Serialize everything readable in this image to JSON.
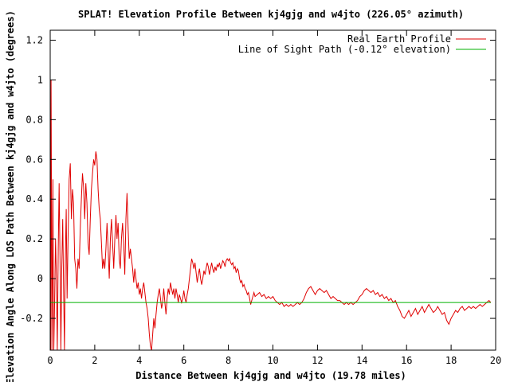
{
  "chart_data": {
    "type": "line",
    "title": "SPLAT! Elevation Profile Between kj4gjg and w4jto (226.05° azimuth)",
    "xlabel": "Distance Between kj4gjg and w4jto (19.78 miles)",
    "ylabel": "Elevation Angle Along LOS Path Between kj4gjg and w4jto (degrees)",
    "xlim": [
      0,
      20
    ],
    "ylim": [
      -0.36,
      1.25
    ],
    "x_ticks": [
      0,
      2,
      4,
      6,
      8,
      10,
      12,
      14,
      16,
      18,
      20
    ],
    "x_tick_labels": [
      "0",
      "2",
      "4",
      "6",
      "8",
      "10",
      "12",
      "14",
      "16",
      "18",
      "20"
    ],
    "y_ticks": [
      -0.2,
      0,
      0.2,
      0.4,
      0.6,
      0.8,
      1,
      1.2
    ],
    "y_tick_labels": [
      "-0.2",
      "0",
      "0.2",
      "0.4",
      "0.6",
      "0.8",
      "1",
      "1.2"
    ],
    "grid": false,
    "legend_position": "top-right",
    "series": [
      {
        "name": "Real Earth Profile",
        "color": "#e00000",
        "points": [
          [
            0.02,
            -0.36
          ],
          [
            0.04,
            1.0
          ],
          [
            0.06,
            0.3
          ],
          [
            0.08,
            -0.36
          ],
          [
            0.1,
            -0.02
          ],
          [
            0.12,
            0.5
          ],
          [
            0.14,
            -0.03
          ],
          [
            0.16,
            -0.36
          ],
          [
            0.2,
            -0.1
          ],
          [
            0.24,
            0.2
          ],
          [
            0.28,
            0.0
          ],
          [
            0.32,
            -0.36
          ],
          [
            0.36,
            0.15
          ],
          [
            0.4,
            0.48
          ],
          [
            0.44,
            0.1
          ],
          [
            0.48,
            -0.36
          ],
          [
            0.52,
            0.05
          ],
          [
            0.56,
            0.3
          ],
          [
            0.6,
            -0.05
          ],
          [
            0.64,
            -0.36
          ],
          [
            0.68,
            0.1
          ],
          [
            0.72,
            0.35
          ],
          [
            0.76,
            -0.1
          ],
          [
            0.8,
            0.2
          ],
          [
            0.85,
            0.5
          ],
          [
            0.9,
            0.58
          ],
          [
            0.95,
            0.3
          ],
          [
            1.0,
            0.45
          ],
          [
            1.05,
            0.38
          ],
          [
            1.1,
            0.1
          ],
          [
            1.15,
            0.05
          ],
          [
            1.2,
            -0.05
          ],
          [
            1.25,
            0.1
          ],
          [
            1.3,
            0.05
          ],
          [
            1.35,
            0.25
          ],
          [
            1.4,
            0.4
          ],
          [
            1.45,
            0.53
          ],
          [
            1.5,
            0.46
          ],
          [
            1.55,
            0.3
          ],
          [
            1.6,
            0.48
          ],
          [
            1.65,
            0.38
          ],
          [
            1.7,
            0.18
          ],
          [
            1.75,
            0.12
          ],
          [
            1.8,
            0.3
          ],
          [
            1.85,
            0.45
          ],
          [
            1.9,
            0.53
          ],
          [
            1.95,
            0.6
          ],
          [
            2.0,
            0.57
          ],
          [
            2.05,
            0.64
          ],
          [
            2.1,
            0.6
          ],
          [
            2.15,
            0.45
          ],
          [
            2.2,
            0.35
          ],
          [
            2.25,
            0.3
          ],
          [
            2.3,
            0.18
          ],
          [
            2.35,
            0.05
          ],
          [
            2.4,
            0.1
          ],
          [
            2.45,
            0.05
          ],
          [
            2.5,
            0.15
          ],
          [
            2.55,
            0.28
          ],
          [
            2.6,
            0.15
          ],
          [
            2.65,
            0.0
          ],
          [
            2.7,
            0.2
          ],
          [
            2.75,
            0.3
          ],
          [
            2.8,
            0.18
          ],
          [
            2.85,
            0.05
          ],
          [
            2.9,
            0.2
          ],
          [
            2.95,
            0.32
          ],
          [
            3.0,
            0.2
          ],
          [
            3.05,
            0.28
          ],
          [
            3.1,
            0.1
          ],
          [
            3.15,
            0.05
          ],
          [
            3.2,
            0.2
          ],
          [
            3.25,
            0.28
          ],
          [
            3.3,
            0.18
          ],
          [
            3.35,
            0.02
          ],
          [
            3.4,
            0.3
          ],
          [
            3.45,
            0.43
          ],
          [
            3.5,
            0.25
          ],
          [
            3.55,
            0.1
          ],
          [
            3.6,
            0.15
          ],
          [
            3.65,
            0.1
          ],
          [
            3.7,
            0.05
          ],
          [
            3.75,
            -0.02
          ],
          [
            3.8,
            0.05
          ],
          [
            3.85,
            0.0
          ],
          [
            3.9,
            -0.05
          ],
          [
            3.95,
            -0.02
          ],
          [
            4.0,
            -0.08
          ],
          [
            4.05,
            -0.05
          ],
          [
            4.1,
            -0.1
          ],
          [
            4.15,
            -0.05
          ],
          [
            4.2,
            -0.02
          ],
          [
            4.25,
            -0.07
          ],
          [
            4.3,
            -0.12
          ],
          [
            4.35,
            -0.15
          ],
          [
            4.4,
            -0.2
          ],
          [
            4.45,
            -0.28
          ],
          [
            4.5,
            -0.34
          ],
          [
            4.55,
            -0.36
          ],
          [
            4.6,
            -0.28
          ],
          [
            4.65,
            -0.2
          ],
          [
            4.7,
            -0.25
          ],
          [
            4.75,
            -0.18
          ],
          [
            4.8,
            -0.12
          ],
          [
            4.85,
            -0.08
          ],
          [
            4.9,
            -0.05
          ],
          [
            4.95,
            -0.1
          ],
          [
            5.0,
            -0.15
          ],
          [
            5.05,
            -0.12
          ],
          [
            5.1,
            -0.05
          ],
          [
            5.15,
            -0.12
          ],
          [
            5.2,
            -0.18
          ],
          [
            5.25,
            -0.1
          ],
          [
            5.3,
            -0.05
          ],
          [
            5.35,
            -0.08
          ],
          [
            5.4,
            -0.02
          ],
          [
            5.45,
            -0.05
          ],
          [
            5.5,
            -0.08
          ],
          [
            5.55,
            -0.05
          ],
          [
            5.6,
            -0.1
          ],
          [
            5.65,
            -0.05
          ],
          [
            5.7,
            -0.08
          ],
          [
            5.75,
            -0.12
          ],
          [
            5.8,
            -0.08
          ],
          [
            5.85,
            -0.1
          ],
          [
            5.9,
            -0.12
          ],
          [
            5.95,
            -0.1
          ],
          [
            6.0,
            -0.06
          ],
          [
            6.05,
            -0.1
          ],
          [
            6.1,
            -0.12
          ],
          [
            6.15,
            -0.08
          ],
          [
            6.2,
            -0.05
          ],
          [
            6.25,
            0.0
          ],
          [
            6.3,
            0.05
          ],
          [
            6.35,
            0.1
          ],
          [
            6.4,
            0.08
          ],
          [
            6.45,
            0.05
          ],
          [
            6.5,
            0.08
          ],
          [
            6.55,
            0.03
          ],
          [
            6.6,
            -0.02
          ],
          [
            6.65,
            0.02
          ],
          [
            6.7,
            0.05
          ],
          [
            6.75,
            0.0
          ],
          [
            6.8,
            -0.03
          ],
          [
            6.85,
            0.0
          ],
          [
            6.9,
            0.04
          ],
          [
            6.95,
            0.02
          ],
          [
            7.0,
            0.05
          ],
          [
            7.05,
            0.08
          ],
          [
            7.1,
            0.06
          ],
          [
            7.15,
            0.02
          ],
          [
            7.2,
            0.05
          ],
          [
            7.25,
            0.08
          ],
          [
            7.3,
            0.05
          ],
          [
            7.35,
            0.03
          ],
          [
            7.4,
            0.06
          ],
          [
            7.45,
            0.04
          ],
          [
            7.5,
            0.07
          ],
          [
            7.55,
            0.06
          ],
          [
            7.6,
            0.08
          ],
          [
            7.65,
            0.05
          ],
          [
            7.7,
            0.07
          ],
          [
            7.75,
            0.09
          ],
          [
            7.8,
            0.08
          ],
          [
            7.85,
            0.06
          ],
          [
            7.9,
            0.09
          ],
          [
            7.95,
            0.1
          ],
          [
            8.0,
            0.09
          ],
          [
            8.05,
            0.1
          ],
          [
            8.1,
            0.08
          ],
          [
            8.15,
            0.07
          ],
          [
            8.2,
            0.08
          ],
          [
            8.25,
            0.05
          ],
          [
            8.3,
            0.06
          ],
          [
            8.35,
            0.03
          ],
          [
            8.4,
            0.05
          ],
          [
            8.45,
            0.04
          ],
          [
            8.5,
            0.0
          ],
          [
            8.55,
            -0.02
          ],
          [
            8.6,
            -0.01
          ],
          [
            8.65,
            -0.04
          ],
          [
            8.7,
            -0.03
          ],
          [
            8.75,
            -0.05
          ],
          [
            8.8,
            -0.06
          ],
          [
            8.85,
            -0.08
          ],
          [
            8.9,
            -0.07
          ],
          [
            8.95,
            -0.1
          ],
          [
            9.0,
            -0.13
          ],
          [
            9.05,
            -0.11
          ],
          [
            9.1,
            -0.09
          ],
          [
            9.15,
            -0.07
          ],
          [
            9.2,
            -0.09
          ],
          [
            9.3,
            -0.08
          ],
          [
            9.4,
            -0.07
          ],
          [
            9.5,
            -0.09
          ],
          [
            9.6,
            -0.08
          ],
          [
            9.7,
            -0.1
          ],
          [
            9.8,
            -0.09
          ],
          [
            9.9,
            -0.1
          ],
          [
            10.0,
            -0.09
          ],
          [
            10.1,
            -0.11
          ],
          [
            10.2,
            -0.12
          ],
          [
            10.3,
            -0.13
          ],
          [
            10.4,
            -0.12
          ],
          [
            10.5,
            -0.14
          ],
          [
            10.6,
            -0.13
          ],
          [
            10.7,
            -0.14
          ],
          [
            10.8,
            -0.13
          ],
          [
            10.9,
            -0.14
          ],
          [
            11.0,
            -0.13
          ],
          [
            11.1,
            -0.12
          ],
          [
            11.2,
            -0.13
          ],
          [
            11.3,
            -0.12
          ],
          [
            11.4,
            -0.1
          ],
          [
            11.5,
            -0.07
          ],
          [
            11.6,
            -0.05
          ],
          [
            11.7,
            -0.04
          ],
          [
            11.8,
            -0.06
          ],
          [
            11.9,
            -0.08
          ],
          [
            12.0,
            -0.06
          ],
          [
            12.1,
            -0.05
          ],
          [
            12.2,
            -0.06
          ],
          [
            12.3,
            -0.07
          ],
          [
            12.4,
            -0.06
          ],
          [
            12.5,
            -0.08
          ],
          [
            12.6,
            -0.1
          ],
          [
            12.7,
            -0.09
          ],
          [
            12.8,
            -0.1
          ],
          [
            12.9,
            -0.11
          ],
          [
            13.0,
            -0.11
          ],
          [
            13.1,
            -0.12
          ],
          [
            13.2,
            -0.13
          ],
          [
            13.3,
            -0.12
          ],
          [
            13.4,
            -0.13
          ],
          [
            13.5,
            -0.12
          ],
          [
            13.6,
            -0.13
          ],
          [
            13.7,
            -0.12
          ],
          [
            13.8,
            -0.11
          ],
          [
            13.9,
            -0.09
          ],
          [
            14.0,
            -0.08
          ],
          [
            14.1,
            -0.06
          ],
          [
            14.2,
            -0.05
          ],
          [
            14.3,
            -0.06
          ],
          [
            14.4,
            -0.07
          ],
          [
            14.5,
            -0.06
          ],
          [
            14.6,
            -0.08
          ],
          [
            14.7,
            -0.07
          ],
          [
            14.8,
            -0.09
          ],
          [
            14.9,
            -0.08
          ],
          [
            15.0,
            -0.1
          ],
          [
            15.1,
            -0.09
          ],
          [
            15.2,
            -0.11
          ],
          [
            15.3,
            -0.1
          ],
          [
            15.4,
            -0.12
          ],
          [
            15.5,
            -0.11
          ],
          [
            15.6,
            -0.14
          ],
          [
            15.7,
            -0.16
          ],
          [
            15.8,
            -0.19
          ],
          [
            15.9,
            -0.2
          ],
          [
            16.0,
            -0.18
          ],
          [
            16.1,
            -0.16
          ],
          [
            16.2,
            -0.19
          ],
          [
            16.3,
            -0.17
          ],
          [
            16.4,
            -0.15
          ],
          [
            16.5,
            -0.18
          ],
          [
            16.6,
            -0.16
          ],
          [
            16.7,
            -0.14
          ],
          [
            16.8,
            -0.17
          ],
          [
            16.9,
            -0.15
          ],
          [
            17.0,
            -0.13
          ],
          [
            17.1,
            -0.15
          ],
          [
            17.2,
            -0.17
          ],
          [
            17.3,
            -0.16
          ],
          [
            17.4,
            -0.14
          ],
          [
            17.5,
            -0.16
          ],
          [
            17.6,
            -0.18
          ],
          [
            17.7,
            -0.17
          ],
          [
            17.8,
            -0.21
          ],
          [
            17.9,
            -0.23
          ],
          [
            18.0,
            -0.2
          ],
          [
            18.1,
            -0.18
          ],
          [
            18.2,
            -0.16
          ],
          [
            18.3,
            -0.17
          ],
          [
            18.4,
            -0.15
          ],
          [
            18.5,
            -0.14
          ],
          [
            18.6,
            -0.16
          ],
          [
            18.7,
            -0.15
          ],
          [
            18.8,
            -0.14
          ],
          [
            18.9,
            -0.15
          ],
          [
            19.0,
            -0.14
          ],
          [
            19.1,
            -0.15
          ],
          [
            19.2,
            -0.14
          ],
          [
            19.3,
            -0.13
          ],
          [
            19.4,
            -0.14
          ],
          [
            19.5,
            -0.13
          ],
          [
            19.6,
            -0.12
          ],
          [
            19.7,
            -0.11
          ],
          [
            19.78,
            -0.12
          ]
        ]
      },
      {
        "name": "Line of Sight Path (-0.12° elevation)",
        "color": "#00b000",
        "points": [
          [
            0,
            -0.12
          ],
          [
            19.78,
            -0.12
          ]
        ]
      }
    ]
  }
}
